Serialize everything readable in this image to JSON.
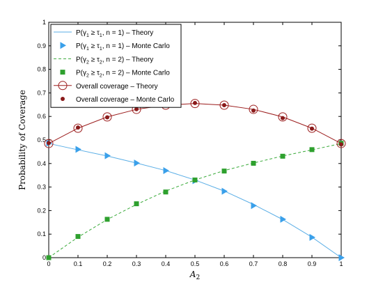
{
  "chart_data": {
    "type": "line",
    "xlabel": "A",
    "xlabel_sub": "2",
    "ylabel": "Probability of Coverage",
    "xlim": [
      0,
      1
    ],
    "ylim": [
      0,
      1
    ],
    "x_ticks": [
      "0",
      "0.1",
      "0.2",
      "0.3",
      "0.4",
      "0.5",
      "0.6",
      "0.7",
      "0.8",
      "0.9",
      "1"
    ],
    "y_ticks": [
      "0",
      "0.1",
      "0.2",
      "0.3",
      "0.4",
      "0.5",
      "0.6",
      "0.7",
      "0.8",
      "0.9",
      "1"
    ],
    "grid": false,
    "legend_position": "top-left",
    "x": [
      0,
      0.1,
      0.2,
      0.3,
      0.4,
      0.5,
      0.6,
      0.7,
      0.8,
      0.9,
      1
    ],
    "series": [
      {
        "name": "P(γ1 ≥ τ1, n = 1) – Theory",
        "legend": {
          "pre": "P(γ",
          "sub1": "1",
          "mid": " ≥ τ",
          "sub2": "1",
          "post": ", n = 1) – Theory"
        },
        "style": "solid-line",
        "color": "#5aaee6",
        "values": [
          0.485,
          0.458,
          0.432,
          0.402,
          0.37,
          0.33,
          0.283,
          0.226,
          0.162,
          0.087,
          0.0
        ]
      },
      {
        "name": "P(γ1 ≥ τ1, n = 1) – Monte Carlo",
        "legend": {
          "pre": "P(γ",
          "sub1": "1",
          "mid": " ≥ τ",
          "sub2": "1",
          "post": ", n = 1) – Monte Carlo"
        },
        "style": "triangle-marker",
        "color": "#3aa0ea",
        "values": [
          0.487,
          0.46,
          0.433,
          0.402,
          0.37,
          0.327,
          0.282,
          0.221,
          0.163,
          0.086,
          0.0
        ]
      },
      {
        "name": "P(γ2 ≥ τ2, n = 2) – Theory",
        "legend": {
          "pre": "P(γ",
          "sub1": "2",
          "mid": " ≥ τ",
          "sub2": "2",
          "post": ", n = 2) – Theory"
        },
        "style": "dashed-line",
        "color": "#3aaa3a",
        "values": [
          0.0,
          0.087,
          0.162,
          0.226,
          0.283,
          0.33,
          0.37,
          0.402,
          0.432,
          0.458,
          0.485
        ]
      },
      {
        "name": "P(γ2 ≥ τ2, n = 2) – Monte Carlo",
        "legend": {
          "pre": "P(γ",
          "sub1": "2",
          "mid": " ≥ τ",
          "sub2": "2",
          "post": ", n = 2) – Monte Carlo"
        },
        "style": "square-marker",
        "color": "#2ea02e",
        "values": [
          0.0,
          0.09,
          0.163,
          0.229,
          0.279,
          0.33,
          0.368,
          0.401,
          0.431,
          0.459,
          0.486
        ]
      },
      {
        "name": "Overall coverage – Theory",
        "legend": {
          "pre": "Overall coverage – Theory",
          "sub1": "",
          "mid": "",
          "sub2": "",
          "post": ""
        },
        "style": "solid-line-open-circle",
        "color": "#9b1c1c",
        "values": [
          0.485,
          0.55,
          0.598,
          0.63,
          0.648,
          0.655,
          0.648,
          0.63,
          0.598,
          0.55,
          0.485
        ]
      },
      {
        "name": "Overall coverage – Monte Carlo",
        "legend": {
          "pre": "Overall coverage – Monte Carlo",
          "sub1": "",
          "mid": "",
          "sub2": "",
          "post": ""
        },
        "style": "filled-dot",
        "color": "#8a1a1a",
        "values": [
          0.487,
          0.553,
          0.596,
          0.631,
          0.649,
          0.657,
          0.648,
          0.625,
          0.593,
          0.548,
          0.481
        ]
      }
    ]
  }
}
